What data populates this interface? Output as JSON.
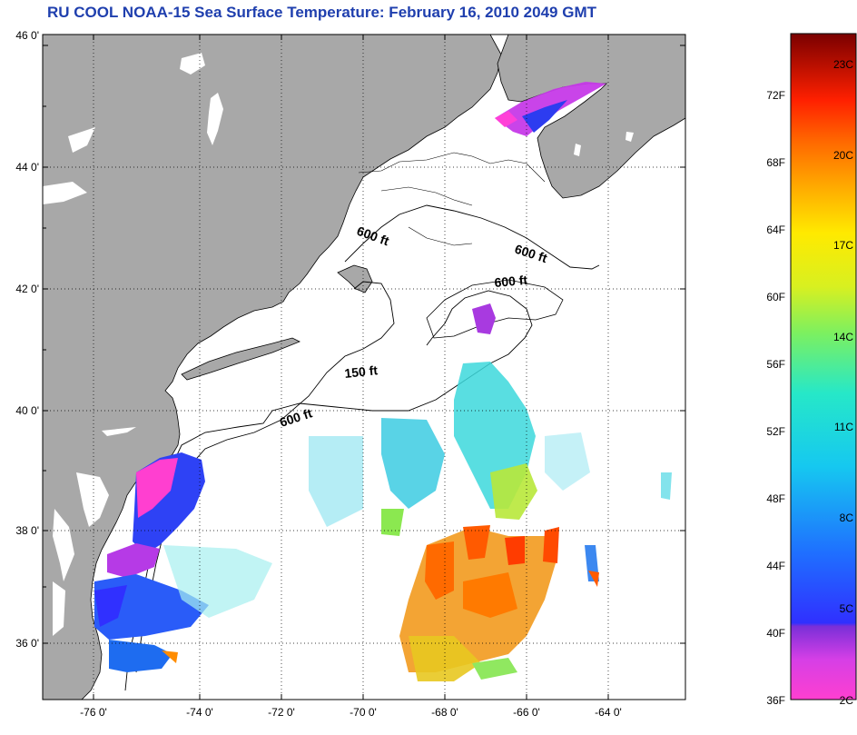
{
  "title": "RU COOL  NOAA-15  Sea Surface Temperature:  February 16, 2010 2049 GMT",
  "colors": {
    "land": "#a8a8a8",
    "water": "#ffffff",
    "title": "#1f3fae"
  },
  "lat_labels": [
    "46 0'",
    "44 0'",
    "42 0'",
    "40 0'",
    "38 0'",
    "36 0'"
  ],
  "lon_labels": [
    "-76 0'",
    "-74 0'",
    "-72 0'",
    "-70 0'",
    "-68 0'",
    "-66 0'",
    "-64 0'"
  ],
  "depth_labels": [
    "600 ft",
    "600 ft",
    "600 ft",
    "150 ft",
    "600 ft"
  ],
  "colorbar": {
    "fahrenheit": [
      "72F",
      "68F",
      "64F",
      "60F",
      "56F",
      "52F",
      "48F",
      "44F",
      "40F",
      "36F"
    ],
    "celsius": [
      "23C",
      "20C",
      "17C",
      "14C",
      "11C",
      "8C",
      "5C",
      "2C"
    ]
  }
}
